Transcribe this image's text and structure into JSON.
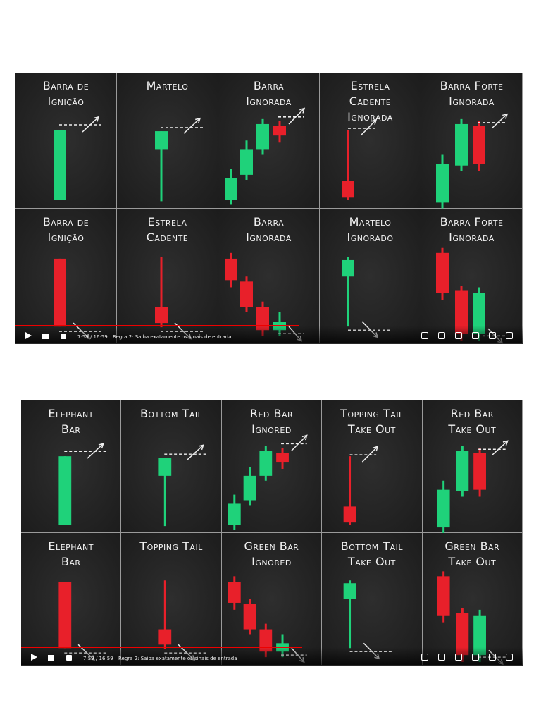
{
  "frames": [
    {
      "panels": [
        "Barra de\nIgnição",
        "Martelo",
        "Barra\nIgnorada",
        "Estrela\nCadente\nIgnorada",
        "Barra Forte\nIgnorada",
        "Barra de\nIgnição",
        "Estrela\nCadente",
        "Barra\nIgnorada",
        "Martelo\nIgnorado",
        "Barra Forte\nIgnorada"
      ],
      "time": "7:59 / 16:59",
      "title": "Regra 2: Saiba exatamente os sinais de entrada"
    },
    {
      "panels": [
        "Elephant\nBar",
        "Bottom Tail",
        "Red Bar\nIgnored",
        "Topping Tail\nTake Out",
        "Red Bar\nTake Out",
        "Elephant\nBar",
        "Topping Tail",
        "Green Bar\nIgnored",
        "Bottom Tail\nTake Out",
        "Green Bar\nTake Out"
      ],
      "time": "7:59 / 16:59",
      "title": "Regra 2: Saiba exatamente os sinais de entrada"
    }
  ]
}
